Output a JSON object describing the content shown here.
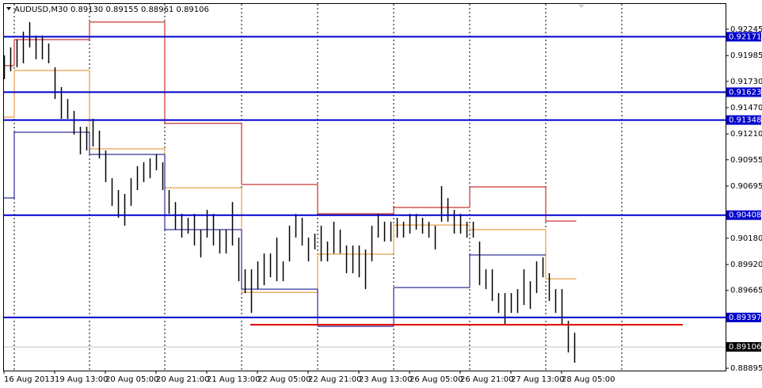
{
  "chart_data": {
    "type": "ohlc",
    "title": "AUDUSD,M30  0.89130 0.89155 0.88961 0.89106",
    "bar_color": "#000000",
    "x": [
      0,
      4,
      8,
      12,
      16,
      20,
      24,
      28,
      32,
      36,
      40,
      44,
      48,
      52,
      56,
      60,
      64,
      68,
      72,
      76,
      80,
      84,
      88,
      92,
      96,
      100,
      104,
      108,
      112,
      116,
      120,
      124,
      128,
      132,
      136,
      140,
      144,
      148,
      152,
      156,
      160,
      164,
      168,
      172,
      176,
      180,
      184,
      188,
      192,
      196,
      200,
      204,
      208,
      212,
      216,
      220,
      224,
      228,
      232,
      236,
      240,
      244,
      248,
      252,
      256,
      260,
      264,
      268,
      272,
      276,
      280,
      284,
      288,
      292,
      296,
      300,
      304,
      308,
      312,
      316,
      320,
      324,
      328,
      332,
      336,
      340,
      344,
      348,
      352,
      356,
      360
    ],
    "high": [
      0.91987,
      0.92065,
      0.92143,
      0.92222,
      0.92316,
      0.92183,
      0.92183,
      0.92104,
      0.91869,
      0.91674,
      0.91556,
      0.91439,
      0.91282,
      0.91282,
      0.9136,
      0.91243,
      0.91047,
      0.90773,
      0.90656,
      0.90617,
      0.90773,
      0.90891,
      0.9093,
      0.90969,
      0.91008,
      0.9093,
      0.90656,
      0.90538,
      0.90421,
      0.90382,
      0.90421,
      0.90264,
      0.9046,
      0.90421,
      0.90264,
      0.90264,
      0.90538,
      0.90186,
      0.89873,
      0.89873,
      0.89951,
      0.90029,
      0.90029,
      0.90186,
      0.89951,
      0.90303,
      0.90421,
      0.90382,
      0.90186,
      0.90225,
      0.90303,
      0.90147,
      0.90343,
      0.90264,
      0.90108,
      0.90108,
      0.90108,
      0.90069,
      0.90303,
      0.90421,
      0.90343,
      0.90343,
      0.90382,
      0.90343,
      0.90421,
      0.90421,
      0.90382,
      0.90343,
      0.90303,
      0.90695,
      0.90577,
      0.9046,
      0.90421,
      0.90343,
      0.90343,
      0.90147,
      0.89873,
      0.89873,
      0.89638,
      0.89638,
      0.89638,
      0.89677,
      0.89873,
      0.89755,
      0.89951,
      0.8999,
      0.89834,
      0.89677,
      0.89677,
      0.89364,
      0.89246
    ],
    "low": [
      0.91752,
      0.9183,
      0.91869,
      0.91909,
      0.92065,
      0.91948,
      0.91948,
      0.91909,
      0.91556,
      0.9136,
      0.9136,
      0.91204,
      0.91008,
      0.91047,
      0.91086,
      0.90969,
      0.90734,
      0.90499,
      0.90382,
      0.90303,
      0.90499,
      0.90656,
      0.90734,
      0.90773,
      0.90852,
      0.90656,
      0.90421,
      0.90264,
      0.90186,
      0.90225,
      0.90108,
      0.8999,
      0.90186,
      0.90108,
      0.90029,
      0.90029,
      0.90108,
      0.89755,
      0.89638,
      0.89442,
      0.89677,
      0.89716,
      0.89794,
      0.89755,
      0.89755,
      0.89951,
      0.90186,
      0.90108,
      0.89951,
      0.90069,
      0.89951,
      0.89951,
      0.90029,
      0.90029,
      0.89834,
      0.89834,
      0.89794,
      0.89677,
      0.89951,
      0.90186,
      0.90147,
      0.90147,
      0.90186,
      0.90186,
      0.90225,
      0.90264,
      0.90225,
      0.90186,
      0.90069,
      0.90343,
      0.90343,
      0.90225,
      0.90225,
      0.90186,
      0.90186,
      0.89716,
      0.89677,
      0.8956,
      0.89442,
      0.89325,
      0.89442,
      0.89442,
      0.8952,
      0.89481,
      0.89638,
      0.89794,
      0.8956,
      0.89442,
      0.89325,
      0.89051,
      0.88949
    ],
    "xlim": [
      0,
      455.5
    ],
    "ylim": [
      0.88872,
      0.92495
    ],
    "xticks": [
      {
        "value": 0,
        "label": "16 Aug 2013"
      },
      {
        "value": 32,
        "label": "19 Aug 13:00"
      },
      {
        "value": 64,
        "label": "20 Aug 05:00"
      },
      {
        "value": 96,
        "label": "20 Aug 21:00"
      },
      {
        "value": 128,
        "label": "21 Aug 13:00"
      },
      {
        "value": 160,
        "label": "22 Aug 05:00"
      },
      {
        "value": 192,
        "label": "22 Aug 21:00"
      },
      {
        "value": 224,
        "label": "23 Aug 13:00"
      },
      {
        "value": 256,
        "label": "26 Aug 05:00"
      },
      {
        "value": 288,
        "label": "26 Aug 21:00"
      },
      {
        "value": 320,
        "label": "27 Aug 13:00"
      },
      {
        "value": 352,
        "label": "28 Aug 05:00"
      }
    ],
    "yticks": [
      0.92245,
      0.91985,
      {
        "value": 0.9173,
        "label": "0.91730"
      },
      {
        "value": 0.9147,
        "label": "0.91470"
      },
      {
        "value": 0.9121,
        "label": "0.91210"
      },
      0.90955,
      0.90695,
      {
        "value": 0.9018,
        "label": "0.90180"
      },
      {
        "value": 0.8992,
        "label": "0.89920"
      },
      0.89665,
      0.88895
    ],
    "separators": [
      6.5,
      54,
      101.5,
      150,
      198,
      246,
      294,
      342,
      390
    ],
    "levels": [
      {
        "color": "#c00000",
        "values": [
          0.91885,
          0.92143,
          0.92316,
          0.91314,
          0.90711,
          0.90421,
          0.90484,
          0.90687,
          0.9035
        ]
      },
      {
        "color": "#e08a1e",
        "values": [
          0.91376,
          0.91838,
          0.91063,
          0.90679,
          0.89646,
          0.90022,
          0.90311,
          0.90265,
          0.89779
        ]
      },
      {
        "color": "#000080",
        "values": [
          0.90578,
          0.91227,
          0.91008,
          0.90265,
          0.89677,
          0.89309,
          0.89693,
          0.90014,
          null
        ]
      }
    ],
    "hlines": {
      "color": "#0000cc",
      "values": [
        0.92171,
        0.91623,
        0.91348,
        0.90408,
        0.89397
      ]
    },
    "trend_line": {
      "color": "#e00000",
      "value": 0.89325,
      "from": 155.5,
      "to": 428.5
    },
    "current_price": {
      "value": 0.89106,
      "label": "0.89106"
    }
  }
}
